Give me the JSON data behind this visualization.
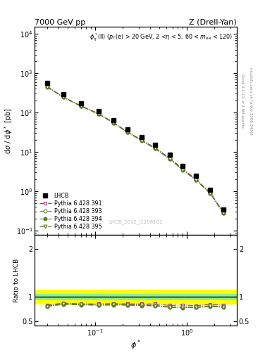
{
  "title_left": "7000 GeV pp",
  "title_right": "Z (Drell-Yan)",
  "annotation": "$\\phi^*_{\\eta}$(ll) ($p_T$(e) > 20 GeV, 2 <$\\eta$ < 5, 60 < $m_{ee}$ < 120)",
  "watermark": "LHCB_2012_I1208102",
  "ylabel_main": "d$\\sigma$ / d$\\phi^*$ [pb]",
  "ylabel_ratio": "Ratio to LHCB",
  "xlabel": "$\\phi^*$",
  "right_label_top": "Rivet 3.1.10; ≥ 2.8M events",
  "right_label_bot": "mcplots.cern.ch [arXiv:1306.3436]",
  "lhcb_x": [
    0.03,
    0.045,
    0.07,
    0.11,
    0.16,
    0.225,
    0.32,
    0.45,
    0.65,
    0.9,
    1.25,
    1.8,
    2.5
  ],
  "lhcb_y": [
    560,
    290,
    175,
    110,
    65,
    38,
    24,
    15,
    8.5,
    4.5,
    2.5,
    1.1,
    0.35
  ],
  "lhcb_ye": [
    30,
    15,
    9,
    5,
    3.5,
    2,
    1.2,
    0.8,
    0.4,
    0.25,
    0.15,
    0.08,
    0.04
  ],
  "py391_y": [
    465,
    253,
    150,
    94,
    56,
    32.5,
    20.5,
    12.8,
    7.0,
    3.75,
    2.05,
    0.93,
    0.29
  ],
  "py393_y": [
    455,
    248,
    147,
    92,
    54.5,
    31.8,
    20.0,
    12.4,
    6.75,
    3.55,
    1.98,
    0.9,
    0.28
  ],
  "py394_y": [
    450,
    245,
    146,
    91,
    54.0,
    31.5,
    19.7,
    12.2,
    6.65,
    3.5,
    1.95,
    0.88,
    0.275
  ],
  "py395_y": [
    452,
    247,
    147,
    92,
    54.5,
    31.8,
    19.8,
    12.3,
    6.7,
    3.52,
    1.96,
    0.89,
    0.277
  ],
  "ylim_main": [
    0.08,
    15000
  ],
  "ylim_ratio": [
    0.4,
    2.3
  ],
  "xlim": [
    0.022,
    3.5
  ],
  "color_391": "#9B3070",
  "color_393_394_395": "#5F7A28",
  "lhcb_color": "#000000",
  "band_yellow": [
    0.85,
    1.15
  ],
  "band_green": [
    0.93,
    1.07
  ]
}
